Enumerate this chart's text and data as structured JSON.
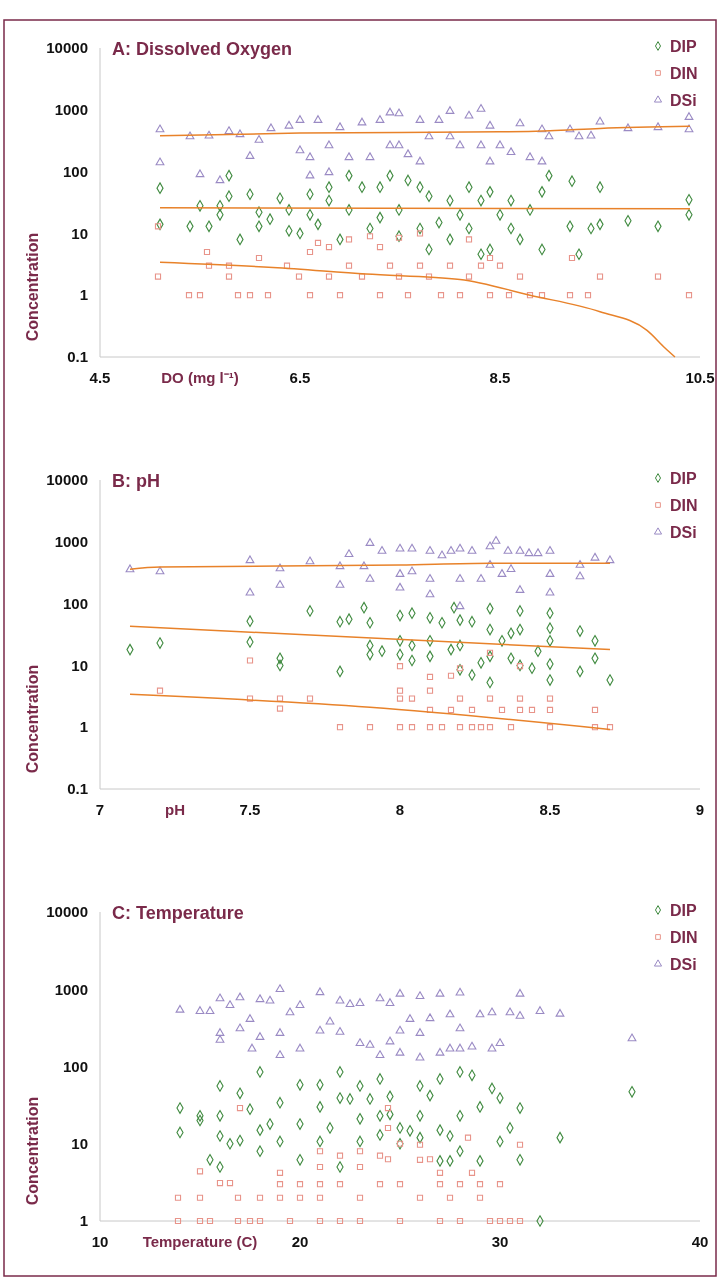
{
  "chart_data": [
    {
      "type": "scatter",
      "title": "A: Dissolved Oxygen",
      "xlabel": "DO (mg l⁻¹)",
      "ylabel": "Concentration",
      "log": "y",
      "legend": "top right",
      "xlim": [
        4.5,
        10.5
      ],
      "xticks": [
        4.5,
        6.5,
        8.5,
        10.5
      ],
      "ylim": [
        0.1,
        10000
      ],
      "yticks": [
        0.1,
        1,
        10,
        100,
        1000,
        10000
      ],
      "series": [
        {
          "name": "DIP",
          "marker": "diamond",
          "color": "#3f8a3f",
          "x": [
            5.1,
            5.1,
            5.4,
            5.5,
            5.59,
            5.7,
            5.7,
            5.79,
            5.79,
            5.9,
            6.0,
            6.09,
            6.09,
            6.2,
            6.3,
            6.39,
            6.39,
            6.5,
            6.6,
            6.6,
            6.68,
            6.79,
            6.79,
            6.9,
            6.99,
            6.99,
            7.12,
            7.2,
            7.3,
            7.3,
            7.4,
            7.49,
            7.49,
            7.58,
            7.7,
            7.7,
            7.79,
            7.79,
            7.89,
            8.0,
            8.0,
            8.1,
            8.19,
            8.19,
            8.31,
            8.31,
            8.4,
            8.4,
            8.5,
            8.61,
            8.61,
            8.7,
            8.8,
            8.92,
            8.92,
            8.99,
            9.2,
            9.22,
            9.29,
            9.41,
            9.5,
            9.5,
            9.78,
            10.08,
            10.39,
            10.39
          ],
          "values": [
            54,
            14,
            13,
            28,
            13,
            28,
            20,
            86,
            40,
            8,
            43,
            22,
            13,
            17,
            37,
            24,
            11,
            10,
            43,
            20,
            14,
            56,
            34,
            8,
            86,
            24,
            56,
            12,
            56,
            18,
            86,
            24,
            9,
            72,
            56,
            12,
            40,
            5.5,
            15,
            34,
            8,
            20,
            56,
            12,
            4.6,
            34,
            47,
            5.5,
            20,
            12,
            34,
            8,
            24,
            47,
            5.5,
            86,
            13,
            70,
            4.6,
            12,
            56,
            14,
            16,
            13,
            35,
            20
          ]
        },
        {
          "name": "DIN",
          "marker": "square",
          "color": "#e8948a",
          "x": [
            5.08,
            5.08,
            5.39,
            5.5,
            5.57,
            5.59,
            5.79,
            5.79,
            5.88,
            6.0,
            6.09,
            6.18,
            6.37,
            6.49,
            6.6,
            6.6,
            6.68,
            6.79,
            6.79,
            6.9,
            6.99,
            6.99,
            7.12,
            7.2,
            7.3,
            7.3,
            7.4,
            7.49,
            7.49,
            7.58,
            7.7,
            7.7,
            7.79,
            7.91,
            8.0,
            8.1,
            8.19,
            8.19,
            8.31,
            8.4,
            8.4,
            8.5,
            8.59,
            8.7,
            8.8,
            8.92,
            9.2,
            9.22,
            9.38,
            9.5,
            10.08,
            10.39
          ],
          "values": [
            2,
            13,
            1,
            1,
            5,
            3,
            2,
            3,
            1,
            1,
            4,
            1,
            3,
            2,
            1,
            5,
            7,
            6,
            2,
            1,
            8,
            3,
            2,
            9,
            6,
            1,
            3,
            8.5,
            2,
            1,
            10,
            3,
            2,
            1,
            3,
            1,
            8,
            2,
            3,
            1,
            4,
            3,
            1,
            2,
            1,
            1,
            1,
            4,
            1,
            2,
            2,
            1
          ]
        },
        {
          "name": "DSi",
          "marker": "triangle",
          "color": "#9a8ac4",
          "x": [
            5.1,
            5.1,
            5.4,
            5.5,
            5.59,
            5.7,
            5.79,
            5.9,
            6.0,
            6.09,
            6.21,
            6.39,
            6.5,
            6.5,
            6.6,
            6.6,
            6.68,
            6.79,
            6.79,
            6.9,
            6.99,
            7.12,
            7.2,
            7.3,
            7.4,
            7.4,
            7.49,
            7.49,
            7.58,
            7.7,
            7.7,
            7.79,
            7.89,
            8.0,
            8.0,
            8.1,
            8.19,
            8.31,
            8.31,
            8.4,
            8.4,
            8.5,
            8.61,
            8.7,
            8.8,
            8.92,
            8.92,
            8.99,
            9.2,
            9.29,
            9.41,
            9.5,
            9.78,
            10.08,
            10.39,
            10.39
          ],
          "values": [
            480,
            140,
            370,
            90,
            380,
            72,
            450,
            400,
            178,
            325,
            500,
            550,
            680,
            220,
            170,
            86,
            680,
            97,
            265,
            520,
            170,
            620,
            170,
            680,
            900,
            265,
            265,
            870,
            190,
            145,
            680,
            370,
            680,
            950,
            370,
            265,
            800,
            1030,
            265,
            145,
            550,
            265,
            205,
            600,
            170,
            145,
            480,
            370,
            480,
            370,
            380,
            640,
            500,
            520,
            760,
            480
          ]
        },
        {
          "type": "line",
          "color": "#e8822a",
          "x": [
            5.1,
            6.5,
            8.5,
            9.0,
            9.5,
            10.4
          ],
          "values": [
            380,
            420,
            440,
            460,
            500,
            540
          ]
        },
        {
          "type": "line",
          "color": "#e8822a",
          "x": [
            5.1,
            10.4
          ],
          "values": [
            26,
            25
          ]
        },
        {
          "type": "line",
          "color": "#e8822a",
          "x": [
            5.1,
            6.23,
            7.16,
            8.1,
            8.8,
            9.5,
            9.97,
            10.15,
            10.25
          ],
          "values": [
            3.4,
            2.8,
            2.2,
            1.8,
            1.0,
            0.54,
            0.27,
            0.14,
            0.1
          ]
        }
      ]
    },
    {
      "type": "scatter",
      "title": "B: pH",
      "xlabel": "pH",
      "ylabel": "Concentration",
      "log": "y",
      "legend": "top right",
      "xlim": [
        7,
        9
      ],
      "xticks": [
        7,
        7.5,
        8,
        8.5,
        9
      ],
      "ylim": [
        0.1,
        10000
      ],
      "yticks": [
        0.1,
        1,
        10,
        100,
        1000,
        10000
      ],
      "series": [
        {
          "name": "DIP",
          "marker": "diamond",
          "color": "#3f8a3f",
          "x": [
            7.1,
            7.2,
            7.5,
            7.5,
            7.6,
            7.6,
            7.7,
            7.8,
            7.8,
            7.83,
            7.88,
            7.9,
            7.9,
            7.9,
            7.94,
            8.0,
            8.0,
            8.0,
            8.04,
            8.04,
            8.04,
            8.1,
            8.1,
            8.1,
            8.14,
            8.17,
            8.18,
            8.2,
            8.2,
            8.2,
            8.24,
            8.24,
            8.27,
            8.3,
            8.3,
            8.3,
            8.3,
            8.34,
            8.37,
            8.37,
            8.4,
            8.4,
            8.4,
            8.44,
            8.46,
            8.5,
            8.5,
            8.5,
            8.5,
            8.5,
            8.6,
            8.6,
            8.65,
            8.65,
            8.7
          ],
          "values": [
            18,
            23,
            52,
            24,
            13,
            10,
            76,
            8,
            51,
            56,
            86,
            49,
            21,
            15,
            17,
            64,
            25,
            15,
            70,
            21,
            12,
            59,
            25,
            14,
            49,
            18,
            86,
            54,
            21,
            8.5,
            7,
            51,
            11,
            83,
            38,
            14,
            5.3,
            25,
            33,
            13,
            76,
            38,
            10,
            9,
            17,
            70,
            40,
            25,
            10.5,
            5.8,
            36,
            8,
            25,
            13,
            5.8
          ]
        },
        {
          "name": "DIN",
          "marker": "square",
          "color": "#e8948a",
          "x": [
            7.2,
            7.5,
            7.5,
            7.6,
            7.6,
            7.7,
            7.8,
            7.9,
            8.0,
            8.0,
            8.0,
            8.0,
            8.04,
            8.04,
            8.1,
            8.1,
            8.1,
            8.1,
            8.14,
            8.17,
            8.17,
            8.2,
            8.2,
            8.2,
            8.24,
            8.24,
            8.27,
            8.3,
            8.3,
            8.3,
            8.34,
            8.37,
            8.4,
            8.4,
            8.4,
            8.44,
            8.5,
            8.5,
            8.5,
            8.65,
            8.65,
            8.7
          ],
          "values": [
            3.9,
            12,
            2.9,
            2.9,
            2,
            2.9,
            1,
            1,
            1,
            9.7,
            2.9,
            3.9,
            1,
            2.9,
            1,
            3.9,
            6.5,
            1.9,
            1,
            6.8,
            1.9,
            1,
            9,
            2.9,
            1.9,
            1,
            1,
            2.9,
            1,
            16,
            1.9,
            1,
            9.7,
            2.9,
            1.9,
            1.9,
            1,
            2.9,
            1.9,
            1.9,
            1,
            1
          ]
        },
        {
          "name": "DSi",
          "marker": "triangle",
          "color": "#9a8ac4",
          "x": [
            7.1,
            7.2,
            7.5,
            7.5,
            7.6,
            7.6,
            7.7,
            7.8,
            7.8,
            7.83,
            7.88,
            7.9,
            7.9,
            7.94,
            8.0,
            8.0,
            8.0,
            8.04,
            8.04,
            8.1,
            8.1,
            8.1,
            8.14,
            8.17,
            8.2,
            8.2,
            8.2,
            8.24,
            8.27,
            8.3,
            8.3,
            8.32,
            8.34,
            8.36,
            8.37,
            8.4,
            8.4,
            8.43,
            8.46,
            8.5,
            8.5,
            8.5,
            8.6,
            8.6,
            8.65,
            8.7
          ],
          "values": [
            357,
            330,
            500,
            150,
            370,
            200,
            480,
            400,
            200,
            630,
            400,
            950,
            250,
            710,
            770,
            300,
            180,
            770,
            330,
            710,
            140,
            250,
            600,
            710,
            770,
            250,
            90,
            710,
            250,
            840,
            420,
            1030,
            300,
            710,
            360,
            710,
            165,
            650,
            650,
            710,
            300,
            150,
            275,
            420,
            550,
            500
          ]
        },
        {
          "type": "line",
          "color": "#e8822a",
          "x": [
            7.1,
            7.2,
            8.0,
            8.3,
            8.7
          ],
          "values": [
            360,
            390,
            420,
            450,
            450
          ]
        },
        {
          "type": "line",
          "color": "#e8822a",
          "x": [
            7.1,
            8.7
          ],
          "values": [
            43,
            18
          ]
        },
        {
          "type": "line",
          "color": "#e8822a",
          "x": [
            7.1,
            7.9,
            8.7
          ],
          "values": [
            3.4,
            2.1,
            0.92
          ]
        }
      ]
    },
    {
      "type": "scatter",
      "title": "C: Temperature",
      "xlabel": "Temperature (C)",
      "ylabel": "Concentration",
      "log": "y",
      "legend": "top right",
      "xlim": [
        10,
        40
      ],
      "xticks": [
        10,
        20,
        30,
        40
      ],
      "ylim": [
        1,
        10000
      ],
      "yticks": [
        1,
        10,
        100,
        1000,
        10000
      ],
      "series": [
        {
          "name": "DIP",
          "marker": "diamond",
          "color": "#3f8a3f",
          "x": [
            14,
            14,
            15,
            15,
            15.5,
            16,
            16,
            16,
            16,
            16.5,
            17,
            17,
            17.5,
            18,
            18,
            18,
            18.5,
            19,
            19,
            20,
            20,
            20,
            21,
            21,
            21,
            21.5,
            22,
            22,
            22,
            22.5,
            23,
            23,
            23,
            23.5,
            24,
            24,
            24,
            24.5,
            24.5,
            25,
            25,
            25.5,
            26,
            26,
            26,
            26.5,
            27,
            27,
            27,
            27.5,
            27.5,
            28,
            28,
            28,
            28.6,
            29,
            29,
            29.6,
            30,
            30,
            30.5,
            31,
            31,
            32,
            33,
            36.6
          ],
          "values": [
            29,
            14,
            23,
            20,
            6.2,
            5,
            56,
            12.6,
            23,
            10,
            45,
            11,
            28,
            85,
            15,
            8,
            18,
            34,
            10.7,
            58,
            18,
            6.2,
            58,
            30,
            10.7,
            16,
            85,
            39,
            5,
            38,
            56,
            21,
            10.7,
            38,
            69,
            23,
            13,
            41,
            24,
            16,
            10,
            14.7,
            56,
            23,
            12,
            42,
            69,
            15,
            6,
            6,
            12.6,
            85,
            23,
            8,
            77,
            30,
            6,
            52,
            39,
            10.7,
            16,
            29,
            6.2,
            1,
            12,
            47
          ]
        },
        {
          "name": "DIN",
          "marker": "square",
          "color": "#e8948a",
          "x": [
            13.9,
            13.9,
            15,
            15,
            15,
            15.5,
            16,
            16.5,
            16.9,
            16.9,
            17,
            17.5,
            18,
            18,
            19,
            19,
            19,
            19.5,
            20,
            20,
            21,
            21,
            21,
            21,
            21,
            22,
            22,
            22,
            23,
            23,
            23,
            23,
            24,
            24,
            24.4,
            24.4,
            24.4,
            25,
            25,
            25,
            26,
            26,
            26,
            26.5,
            27,
            27,
            27,
            27.5,
            28,
            28,
            28.4,
            28.6,
            29,
            29,
            29.5,
            30,
            30,
            30.5,
            31,
            31
          ],
          "values": [
            2,
            1,
            4.4,
            2,
            1,
            1,
            3.1,
            3.1,
            2,
            1,
            29,
            1,
            2,
            1,
            4.2,
            3,
            2,
            1,
            3,
            2,
            8,
            5,
            3,
            2,
            1,
            7,
            3,
            1,
            8,
            5,
            2,
            1,
            7,
            3,
            29,
            16,
            6.3,
            10,
            3,
            1,
            9.7,
            6.2,
            2,
            6.3,
            4.2,
            3,
            1,
            2,
            3,
            1,
            12,
            4.2,
            3,
            2,
            1,
            3,
            1,
            1,
            9.7,
            1
          ]
        },
        {
          "name": "DSi",
          "marker": "triangle",
          "color": "#9a8ac4",
          "x": [
            14,
            15,
            15.5,
            16,
            16,
            16,
            16.5,
            17,
            17,
            17.5,
            17.6,
            18,
            18,
            18.5,
            19,
            19,
            19,
            19.5,
            20,
            20,
            21,
            21,
            21.5,
            22,
            22,
            22.5,
            23,
            23,
            23.5,
            24,
            24,
            24.5,
            24.5,
            25,
            25,
            25,
            25.5,
            26,
            26,
            26,
            26.5,
            27,
            27,
            27.5,
            27.5,
            28,
            28,
            28,
            28.6,
            29,
            29.6,
            29.6,
            30,
            30.5,
            31,
            31,
            32,
            33,
            36.6
          ],
          "values": [
            540,
            520,
            520,
            760,
            270,
            220,
            620,
            780,
            310,
            410,
            170,
            740,
            240,
            710,
            1000,
            270,
            140,
            500,
            620,
            170,
            910,
            290,
            380,
            710,
            280,
            640,
            660,
            200,
            190,
            760,
            140,
            660,
            210,
            870,
            290,
            150,
            410,
            810,
            270,
            130,
            420,
            870,
            150,
            470,
            170,
            900,
            310,
            170,
            180,
            470,
            500,
            170,
            200,
            500,
            870,
            450,
            520,
            480,
            230
          ]
        }
      ]
    }
  ]
}
